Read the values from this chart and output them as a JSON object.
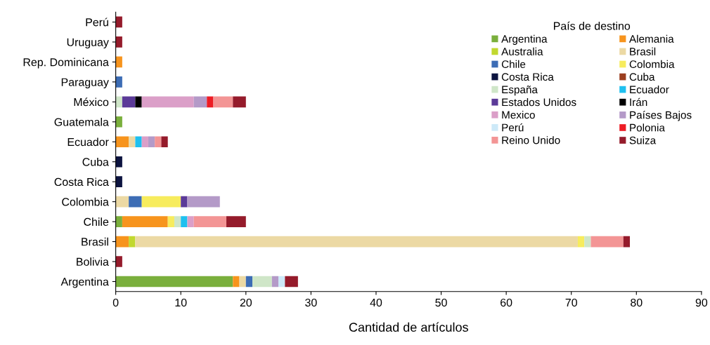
{
  "chart_data": {
    "type": "bar",
    "orientation": "horizontal",
    "stacked": true,
    "xlabel": "Cantidad de artículos",
    "legend_title": "País de destino",
    "legend": "top right",
    "categories": [
      "Perú",
      "Uruguay",
      "Rep. Dominicana",
      "Paraguay",
      "México",
      "Guatemala",
      "Ecuador",
      "Cuba",
      "Costa Rica",
      "Colombia",
      "Chile",
      "Brasil",
      "Bolivia",
      "Argentina"
    ],
    "xlim": [
      0,
      90
    ],
    "xticks": [
      0,
      10,
      20,
      30,
      40,
      50,
      60,
      70,
      80,
      90
    ],
    "grid": false,
    "series": [
      {
        "name": "Argentina",
        "color": "#7aaf3c",
        "values": [
          null,
          null,
          null,
          null,
          null,
          1,
          null,
          null,
          null,
          null,
          1,
          null,
          null,
          18
        ]
      },
      {
        "name": "Alemania",
        "color": "#f7941d",
        "values": [
          null,
          null,
          1,
          null,
          null,
          null,
          2,
          null,
          null,
          null,
          7,
          2,
          null,
          1
        ]
      },
      {
        "name": "Australia",
        "color": "#c1d82f",
        "values": [
          null,
          null,
          null,
          null,
          null,
          null,
          null,
          null,
          null,
          null,
          null,
          1,
          null,
          null
        ]
      },
      {
        "name": "Brasil",
        "color": "#ecd9a4",
        "values": [
          null,
          null,
          null,
          null,
          null,
          null,
          1,
          null,
          null,
          2,
          null,
          68,
          null,
          1
        ]
      },
      {
        "name": "Chile",
        "color": "#3d6db5",
        "values": [
          null,
          null,
          null,
          1,
          null,
          null,
          null,
          null,
          null,
          2,
          null,
          null,
          null,
          1
        ]
      },
      {
        "name": "Colombia",
        "color": "#f7ec5d",
        "values": [
          null,
          null,
          null,
          null,
          null,
          null,
          null,
          null,
          null,
          6,
          1,
          1,
          null,
          null
        ]
      },
      {
        "name": "Costa Rica",
        "color": "#0d1440",
        "values": [
          null,
          null,
          null,
          null,
          null,
          null,
          null,
          1,
          1,
          null,
          null,
          null,
          null,
          null
        ]
      },
      {
        "name": "Cuba",
        "color": "#9b3e1f",
        "values": [
          null,
          null,
          null,
          null,
          null,
          null,
          null,
          null,
          null,
          null,
          null,
          null,
          null,
          null
        ]
      },
      {
        "name": "España",
        "color": "#cfe6c8",
        "values": [
          null,
          null,
          null,
          null,
          1,
          null,
          null,
          null,
          null,
          null,
          1,
          1,
          null,
          3
        ]
      },
      {
        "name": "Ecuador",
        "color": "#1fc0ef",
        "values": [
          null,
          null,
          null,
          null,
          null,
          null,
          1,
          null,
          null,
          null,
          1,
          null,
          null,
          null
        ]
      },
      {
        "name": "Estados Unidos",
        "color": "#5b3a98",
        "values": [
          null,
          null,
          null,
          null,
          2,
          null,
          null,
          null,
          null,
          1,
          null,
          null,
          null,
          null
        ]
      },
      {
        "name": "Irán",
        "color": "#000000",
        "values": [
          null,
          null,
          null,
          null,
          1,
          null,
          null,
          null,
          null,
          null,
          null,
          null,
          null,
          null
        ]
      },
      {
        "name": "Mexico",
        "color": "#db9fc8",
        "values": [
          null,
          null,
          null,
          null,
          8,
          null,
          1,
          null,
          null,
          null,
          1,
          null,
          null,
          null
        ]
      },
      {
        "name": "Países Bajos",
        "color": "#b49ac8",
        "values": [
          null,
          null,
          null,
          null,
          2,
          null,
          1,
          null,
          null,
          5,
          null,
          null,
          null,
          1
        ]
      },
      {
        "name": "Perú",
        "color": "#cde9f8",
        "values": [
          null,
          null,
          null,
          null,
          null,
          null,
          null,
          null,
          null,
          null,
          null,
          null,
          null,
          1
        ]
      },
      {
        "name": "Polonia",
        "color": "#ed1c24",
        "values": [
          null,
          null,
          null,
          null,
          1,
          null,
          null,
          null,
          null,
          null,
          null,
          null,
          null,
          null
        ]
      },
      {
        "name": "Reino Unido",
        "color": "#f39595",
        "values": [
          null,
          null,
          null,
          null,
          3,
          null,
          1,
          null,
          null,
          null,
          5,
          5,
          null,
          null
        ]
      },
      {
        "name": "Suiza",
        "color": "#951b2b",
        "values": [
          1,
          1,
          null,
          null,
          2,
          null,
          1,
          null,
          null,
          null,
          3,
          1,
          1,
          2
        ]
      }
    ]
  }
}
